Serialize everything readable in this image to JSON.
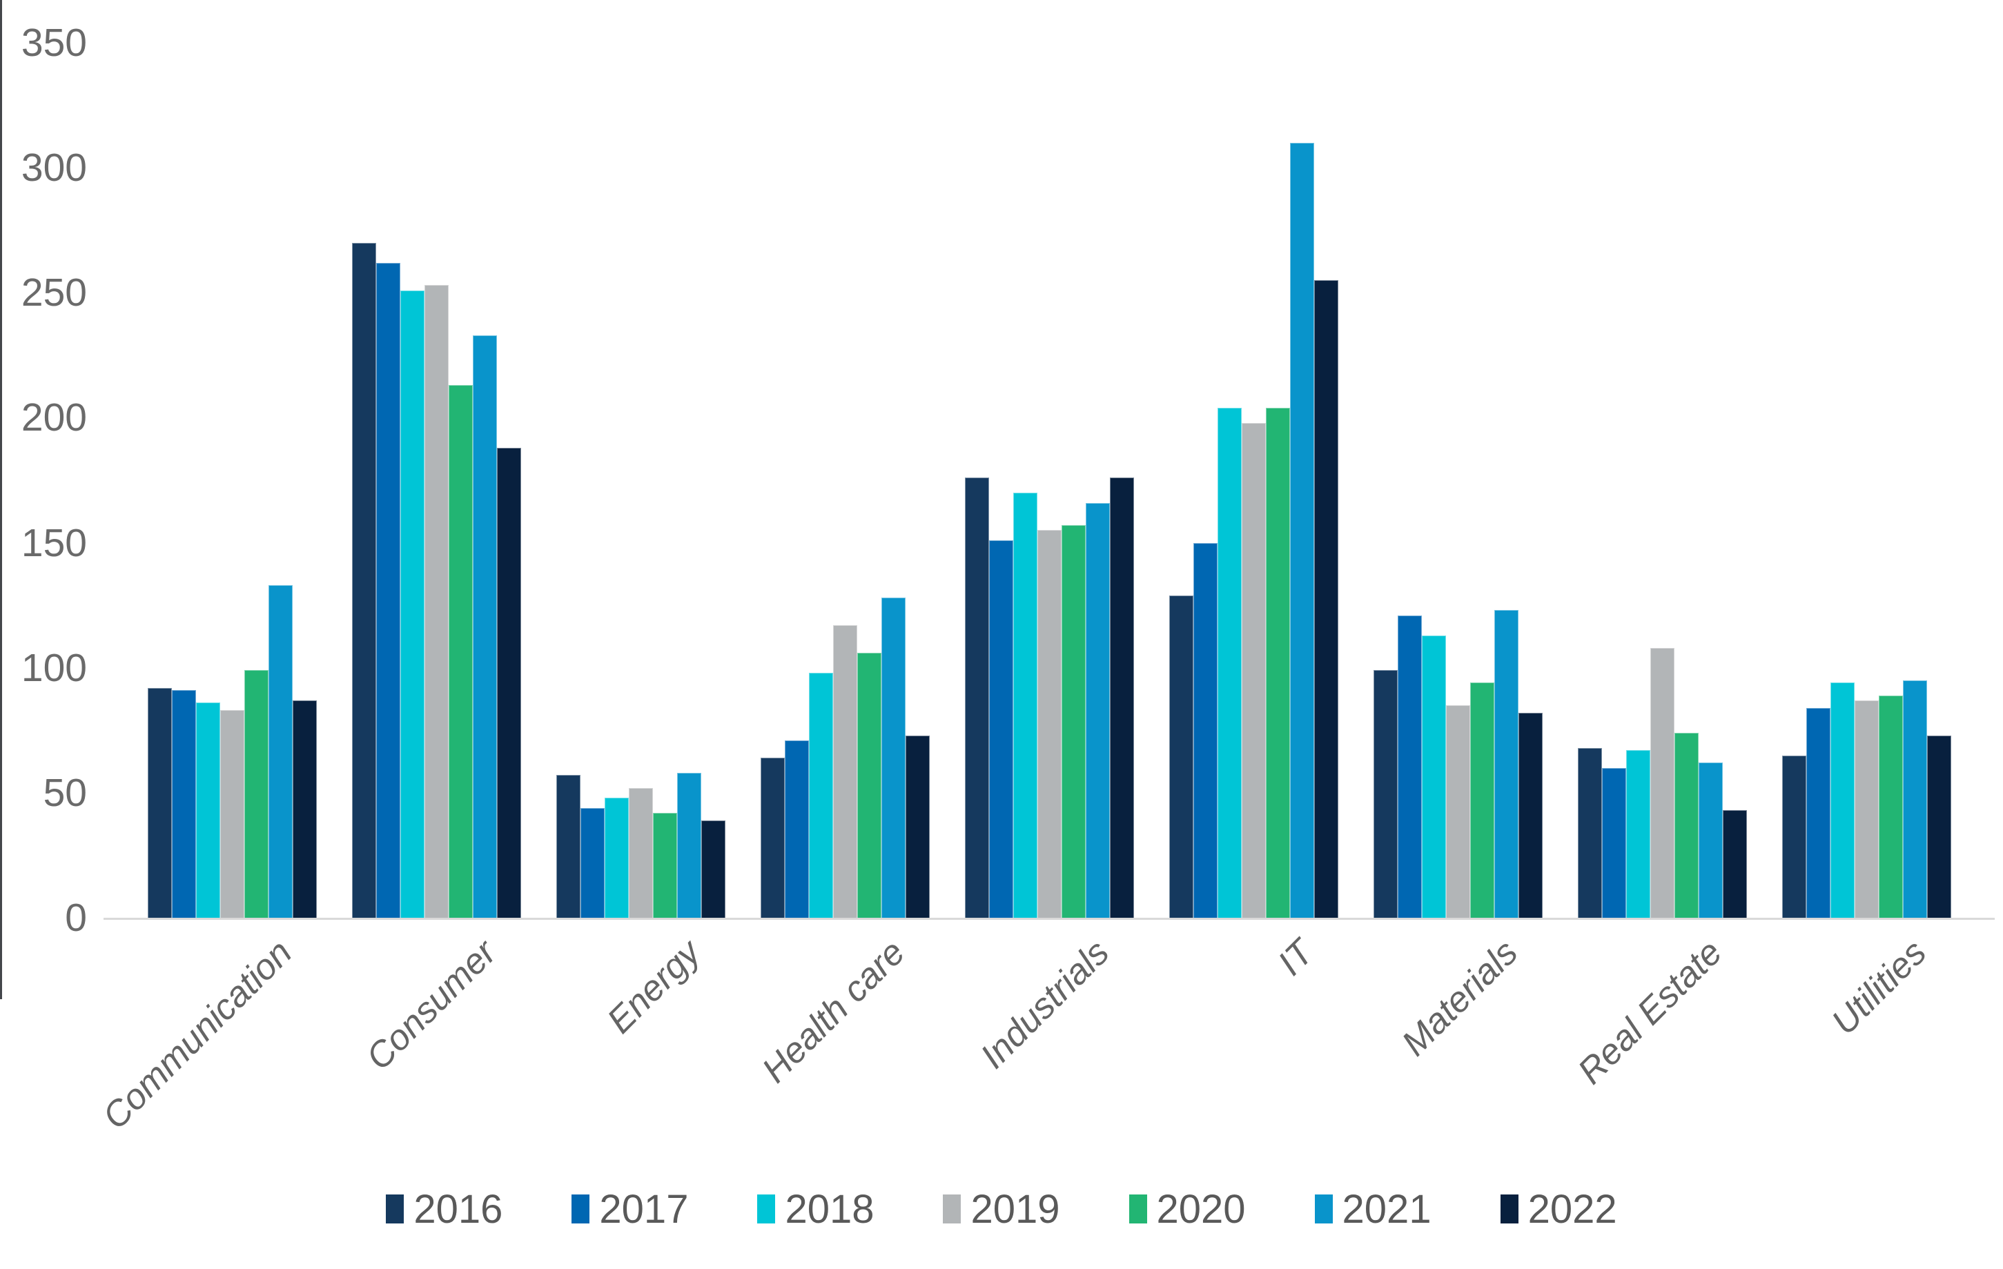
{
  "chart_data": {
    "type": "bar",
    "title": "",
    "xlabel": "",
    "ylabel": "",
    "ylim": [
      0,
      350
    ],
    "ytick_step": 50,
    "yticks": [
      0,
      50,
      100,
      150,
      200,
      250,
      300,
      350
    ],
    "grid": false,
    "legend_position": "bottom",
    "categories": [
      "Communication",
      "Consumer",
      "Energy",
      "Health care",
      "Industrials",
      "IT",
      "Materials",
      "Real Estate",
      "Utilities"
    ],
    "series": [
      {
        "name": "2016",
        "color": "#15395e",
        "values": [
          92,
          270,
          57,
          64,
          176,
          129,
          99,
          68,
          65
        ]
      },
      {
        "name": "2017",
        "color": "#0067b2",
        "values": [
          91,
          262,
          44,
          71,
          151,
          150,
          121,
          60,
          84
        ]
      },
      {
        "name": "2018",
        "color": "#00c5d6",
        "values": [
          86,
          251,
          48,
          98,
          170,
          204,
          113,
          67,
          94
        ]
      },
      {
        "name": "2019",
        "color": "#b2b5b7",
        "values": [
          83,
          253,
          52,
          117,
          155,
          198,
          85,
          108,
          87
        ]
      },
      {
        "name": "2020",
        "color": "#22b573",
        "values": [
          99,
          213,
          42,
          106,
          157,
          204,
          94,
          74,
          89
        ]
      },
      {
        "name": "2021",
        "color": "#0994cb",
        "values": [
          133,
          233,
          58,
          128,
          166,
          310,
          123,
          62,
          95
        ]
      },
      {
        "name": "2022",
        "color": "#08203e",
        "values": [
          87,
          188,
          39,
          73,
          176,
          255,
          82,
          43,
          73
        ]
      }
    ]
  }
}
